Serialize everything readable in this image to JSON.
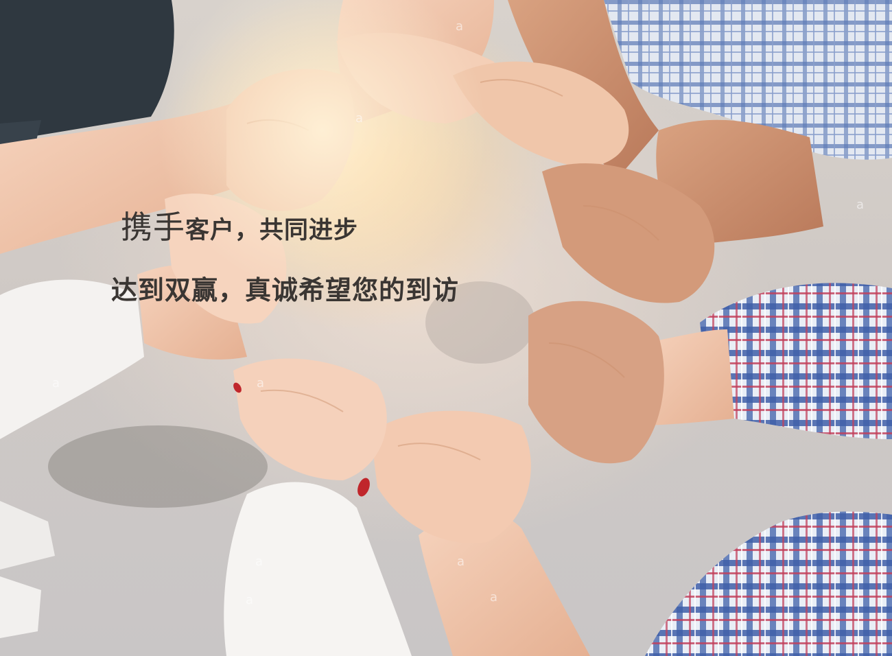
{
  "headline": {
    "line1_first": "携手",
    "line1_rest": "客户，共同进步",
    "line2": "达到双赢，真诚希望您的到访"
  },
  "watermark_glyph": "a",
  "colors": {
    "text": "#3a3633",
    "skin": "#f1c8b0",
    "skin_dark": "#c98d6b",
    "plaid_blue": "#3f5fa8",
    "plaid_red": "#c23f5a",
    "sleeve_white": "#f4f2f0",
    "dark_shirt": "#2f3840"
  }
}
